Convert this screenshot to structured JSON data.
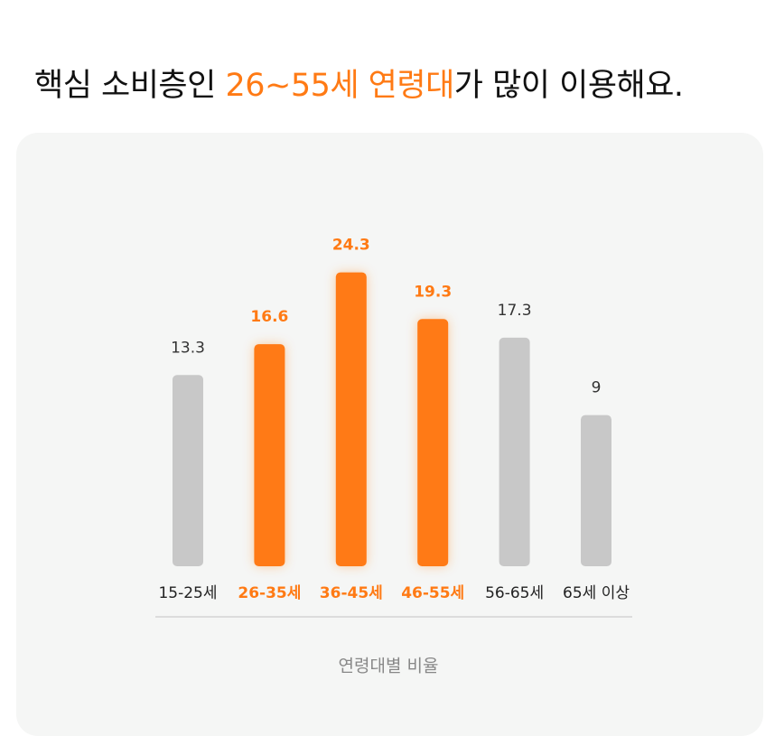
{
  "title": [
    "핵심 소비층인 ",
    "26~55세 연령대",
    "가 많이 이용해요."
  ],
  "chart_data": {
    "type": "bar",
    "x_label": "연령대별 비율",
    "categories": [
      "15-25세",
      "26-35세",
      "36-45세",
      "46-55세",
      "56-65세",
      "65세 이상"
    ],
    "values": [
      13.3,
      16.6,
      24.3,
      19.3,
      17.3,
      9
    ],
    "highlighted": [
      false,
      true,
      true,
      true,
      false,
      false
    ],
    "color": "#c8c8c8",
    "highlight_color": "#ff7a14",
    "ylim": [
      -7.2,
      25
    ]
  }
}
